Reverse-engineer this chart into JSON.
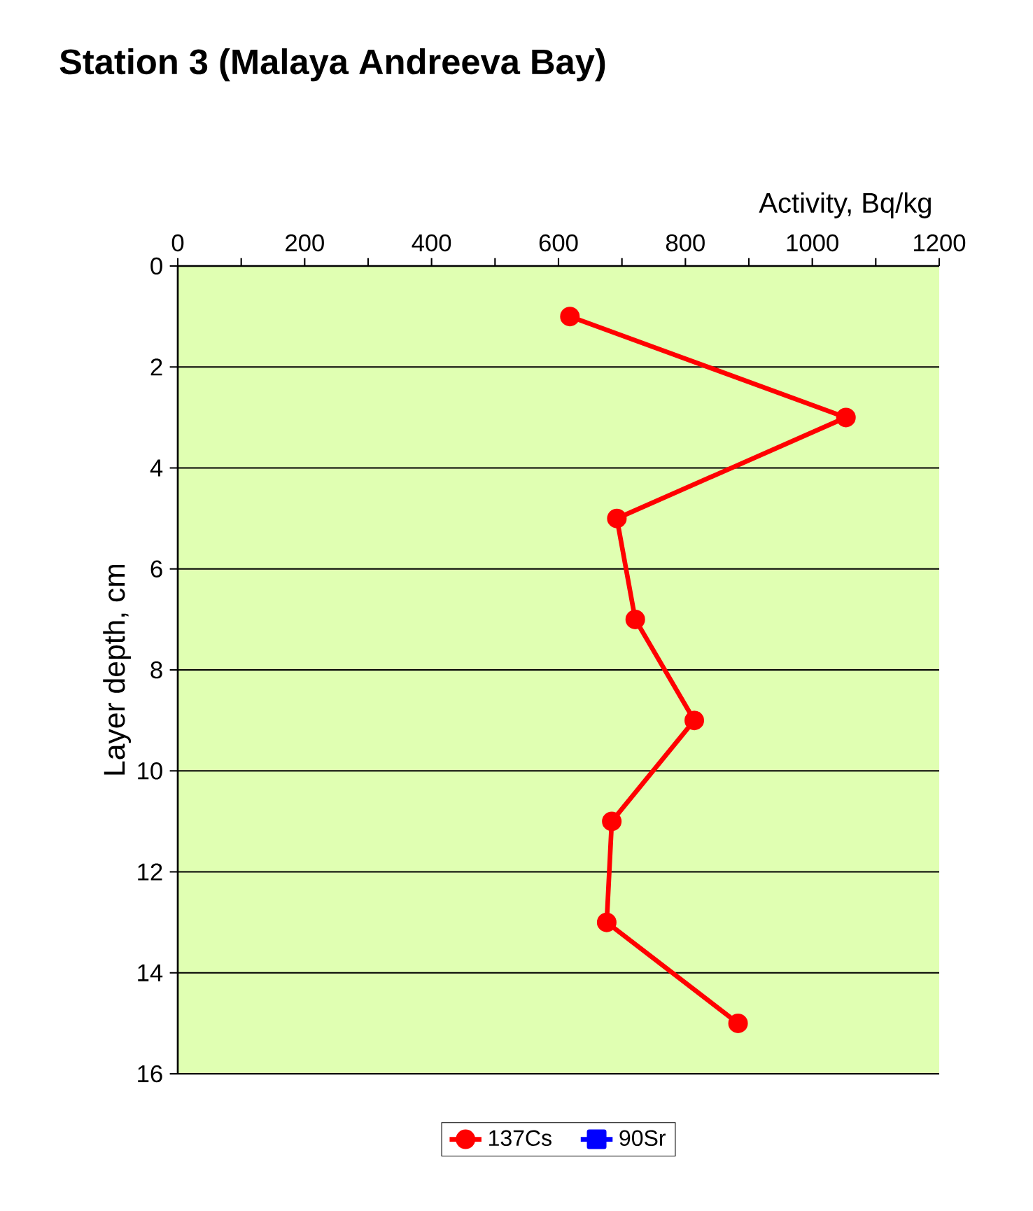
{
  "chart_data": {
    "type": "line",
    "title": "Station 3 (Malaya Andreeva Bay)",
    "xlabel": "Activity, Bq/kg",
    "ylabel": "Layer depth, cm",
    "xlim": [
      0,
      1200
    ],
    "xticks": [
      0,
      {
        "value": 100,
        "label": null
      },
      200,
      {
        "value": 300,
        "label": null
      },
      400,
      {
        "value": 500,
        "label": null
      },
      600,
      {
        "value": 700,
        "label": null
      },
      800,
      {
        "value": 900,
        "label": null
      },
      1000,
      {
        "value": 1100,
        "label": null
      },
      1200
    ],
    "ylim": [
      16,
      0
    ],
    "yticks": [
      0,
      2,
      4,
      6,
      8,
      10,
      12,
      14,
      16
    ],
    "grid": "y",
    "legend": "bottom",
    "line_style": "solid",
    "series": [
      {
        "name": "137Cs",
        "color": "#ff0000",
        "marker": "circle",
        "x": [
          618,
          1053,
          692,
          721,
          814,
          684,
          676,
          883
        ],
        "values": [
          1,
          3,
          5,
          7,
          9,
          11,
          13,
          15
        ]
      },
      {
        "name": "90Sr",
        "color": "#0000ff",
        "marker": "square"
      }
    ]
  }
}
